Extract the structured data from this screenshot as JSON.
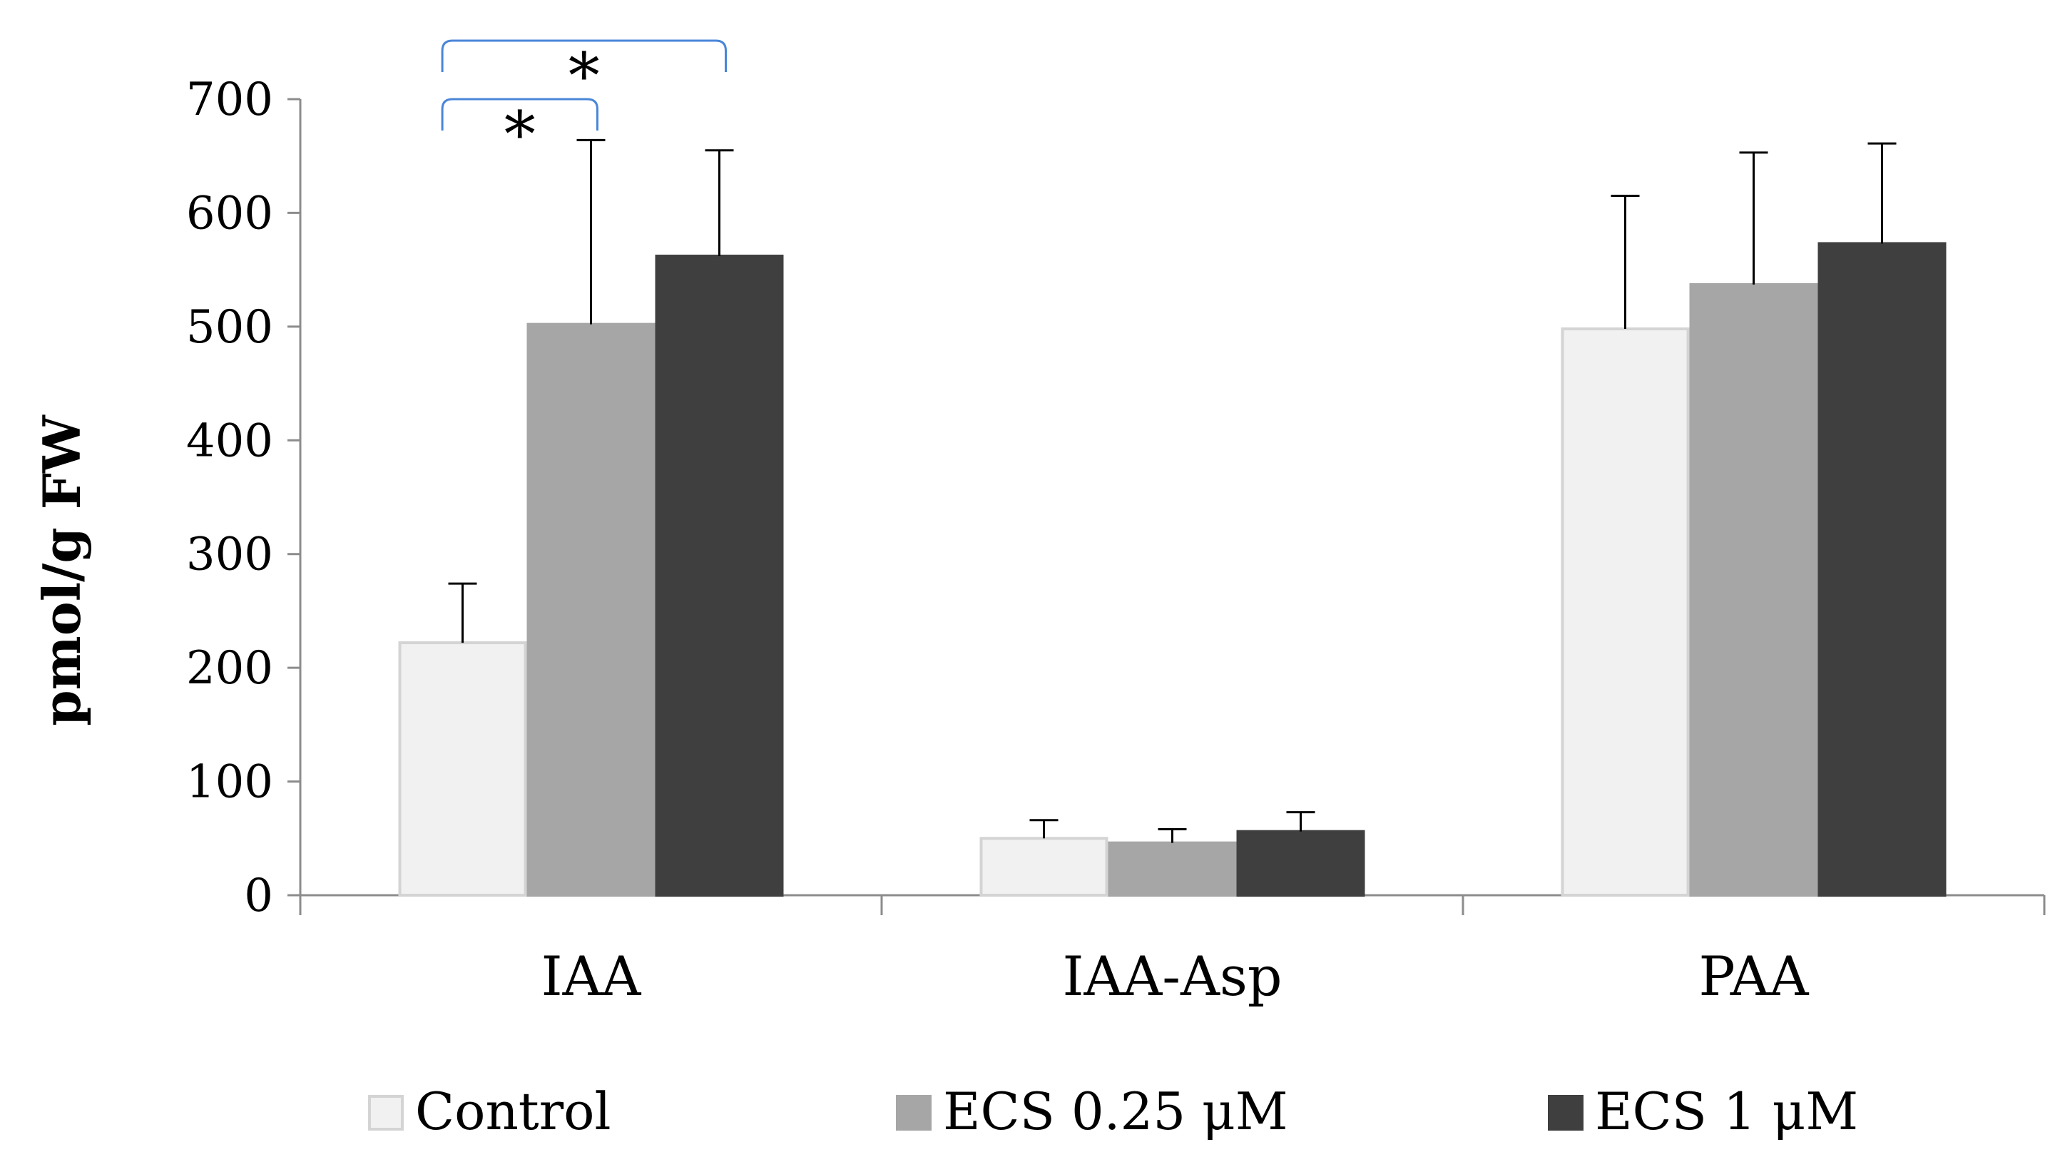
{
  "chart_data": {
    "type": "bar",
    "title": "",
    "xlabel": "",
    "ylabel": "pmol/g FW",
    "ylim": [
      0,
      700
    ],
    "yticks": [
      0,
      100,
      200,
      300,
      400,
      500,
      600,
      700
    ],
    "grid": false,
    "categories": [
      "IAA",
      "IAA-Asp",
      "PAA"
    ],
    "series": [
      {
        "name": "Control",
        "color": "#f1f1f1",
        "stroke": "#d4d4d4",
        "values": [
          222,
          50,
          498
        ],
        "errors": [
          52,
          16,
          117
        ]
      },
      {
        "name": "ECS 0.25 μM",
        "color": "#a6a6a6",
        "stroke": "#a6a6a6",
        "values": [
          502,
          46,
          537
        ],
        "errors": [
          162,
          12,
          116
        ]
      },
      {
        "name": "ECS 1 μM",
        "color": "#3f3f3f",
        "stroke": "#3f3f3f",
        "values": [
          562,
          56,
          573
        ],
        "errors": [
          93,
          17,
          88
        ]
      }
    ],
    "legend_position": "bottom",
    "significance": [
      {
        "category": "IAA",
        "from_series": 0,
        "to_series": 1,
        "label": "*"
      },
      {
        "category": "IAA",
        "from_series": 0,
        "to_series": 2,
        "label": "*"
      }
    ],
    "bracket_color": "#4a86d8"
  }
}
